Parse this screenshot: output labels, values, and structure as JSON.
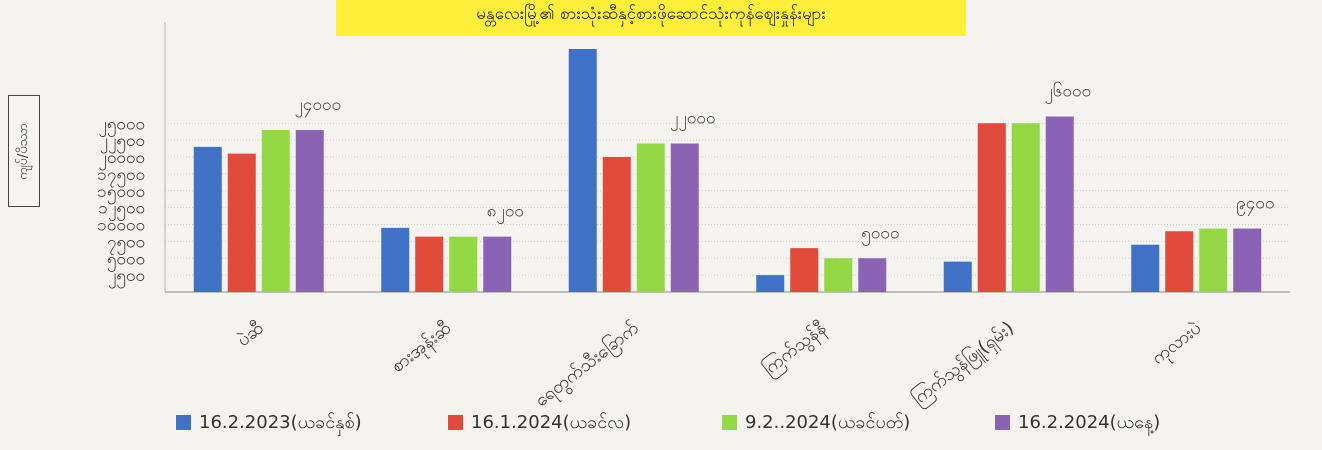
{
  "chart_data": {
    "type": "bar",
    "title": "မန္တလေးမြို့၏ စားသုံးဆီနှင့်စားဖိုဆောင်သုံးကုန်စျေးနှုန်းများ",
    "ylabel": "ကျပ်/ပိဿာ",
    "xlabel": "",
    "ylim": [
      0,
      40000
    ],
    "yticks": [
      {
        "value": 2500,
        "label": "၂၅၀၀"
      },
      {
        "value": 5000,
        "label": "၅၀၀၀"
      },
      {
        "value": 7500,
        "label": "၇၅၀၀"
      },
      {
        "value": 10000,
        "label": "၁၀၀၀၀"
      },
      {
        "value": 12500,
        "label": "၁၂၅၀၀"
      },
      {
        "value": 15000,
        "label": "၁၅၀၀၀"
      },
      {
        "value": 17500,
        "label": "၁၇၅၀၀"
      },
      {
        "value": 20000,
        "label": "၂၀၀၀၀"
      },
      {
        "value": 22500,
        "label": "၂၂၅၀၀"
      },
      {
        "value": 25000,
        "label": "၂၅၀၀၀"
      }
    ],
    "grid": true,
    "legend_position": "bottom",
    "categories": [
      "ပဲဆီ",
      "စားအုန်းဆီ",
      "ရေတွက်သီးခြောက်",
      "ကြက်သွန်နီ",
      "ကြက်သွန်ဖြူ(ရှမ်း)",
      "ကုလားပဲ"
    ],
    "series": [
      {
        "name": "16.2.2023(ယခင်နှစ်)",
        "color": "#3f72c6",
        "values": [
          21500,
          9500,
          36000,
          2500,
          4500,
          7000
        ]
      },
      {
        "name": "16.1.2024(ယခင်လ)",
        "color": "#e04b3b",
        "values": [
          20500,
          8200,
          20000,
          6500,
          25000,
          9000
        ]
      },
      {
        "name": "9.2..2024(ယခင်ပတ်)",
        "color": "#94d845",
        "values": [
          24000,
          8200,
          22000,
          5000,
          25000,
          9400
        ]
      },
      {
        "name": "16.2.2024(ယနေ့)",
        "color": "#8b63b4",
        "values": [
          24000,
          8200,
          22000,
          5000,
          26000,
          9400
        ]
      }
    ],
    "annotations": [
      {
        "category_index": 0,
        "series_index": 3,
        "text": "၂၄၀၀၀"
      },
      {
        "category_index": 1,
        "series_index": 3,
        "text": "၈၂၀၀"
      },
      {
        "category_index": 2,
        "series_index": 3,
        "text": "၂၂၀၀၀"
      },
      {
        "category_index": 3,
        "series_index": 3,
        "text": "၅၀၀၀"
      },
      {
        "category_index": 4,
        "series_index": 3,
        "text": "၂၆၀၀၀"
      },
      {
        "category_index": 5,
        "series_index": 3,
        "text": "၉၄၀၀"
      }
    ]
  }
}
